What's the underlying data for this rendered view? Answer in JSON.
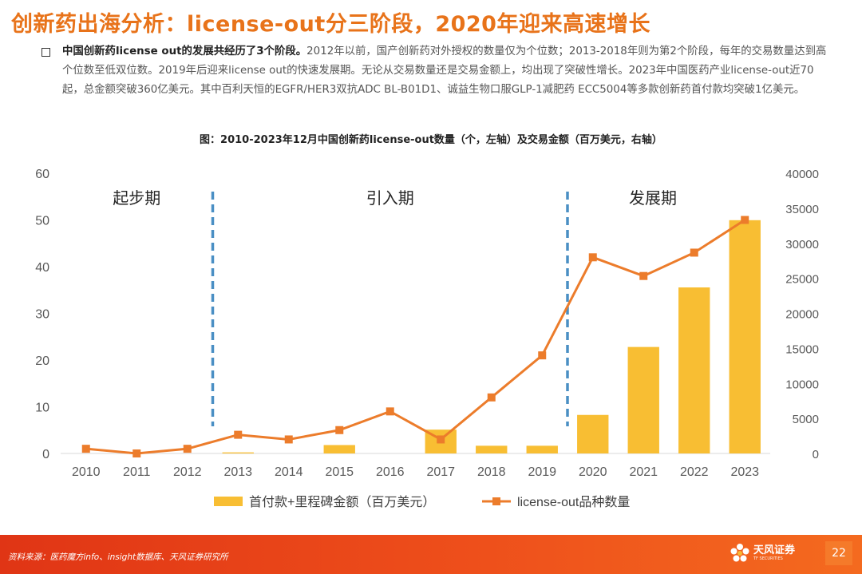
{
  "header": {
    "title": "创新药出海分析：license-out分三阶段，2020年迎来高速增长"
  },
  "intro": {
    "bold": "中国创新药license out的发展共经历了3个阶段。",
    "text": "2012年以前，国产创新药对外授权的数量仅为个位数；2013-2018年则为第2个阶段，每年的交易数量达到高个位数至低双位数。2019年后迎来license out的快速发展期。无论从交易数量还是交易金额上，均出现了突破性增长。2023年中国医药产业license-out近70起，总金额突破360亿美元。其中百利天恒的EGFR/HER3双抗ADC BL-B01D1、诚益生物口服GLP-1减肥药 ECC5004等多款创新药首付款均突破1亿美元。"
  },
  "chart_data": {
    "type": "bar+line",
    "title": "图：2010-2023年12月中国创新药license-out数量（个，左轴）及交易金额（百万美元，右轴）",
    "categories": [
      "2010",
      "2011",
      "2012",
      "2013",
      "2014",
      "2015",
      "2016",
      "2017",
      "2018",
      "2019",
      "2020",
      "2021",
      "2022",
      "2023"
    ],
    "left_axis": {
      "ylim": [
        0,
        60
      ],
      "ticks": [
        "0",
        "10",
        "20",
        "30",
        "40",
        "50",
        "60"
      ]
    },
    "right_axis": {
      "ylim": [
        0,
        40000
      ],
      "ticks": [
        "0",
        "5000",
        "10000",
        "15000",
        "20000",
        "25000",
        "30000",
        "35000",
        "40000"
      ]
    },
    "series": [
      {
        "name": "首付款+里程碑金额（百万美元）",
        "type": "bar",
        "axis": "right",
        "color": "#f8be33",
        "values": [
          0,
          0,
          0,
          150,
          0,
          1200,
          0,
          3400,
          1100,
          1100,
          5500,
          15200,
          23700,
          33300
        ]
      },
      {
        "name": "license-out品种数量",
        "type": "line",
        "axis": "left",
        "color": "#ec7c2b",
        "values": [
          1,
          0,
          1,
          4,
          3,
          5,
          9,
          3,
          12,
          21,
          42,
          38,
          43,
          50
        ]
      }
    ],
    "phases": [
      {
        "label": "起步期",
        "divider_after": "2012"
      },
      {
        "label": "引入期",
        "divider_after": "2019"
      },
      {
        "label": "发展期"
      }
    ]
  },
  "footer": {
    "source": "资料来源：医药魔方info、insight数据库、天风证券研究所",
    "logo_name": "天风证券",
    "logo_sub": "TF SECURITIES",
    "page_number": "22"
  },
  "colors": {
    "title": "#e8731a",
    "bar": "#f8be33",
    "line": "#ec7c2b",
    "divider": "#4a8fc4",
    "footer": "#e8461a"
  }
}
